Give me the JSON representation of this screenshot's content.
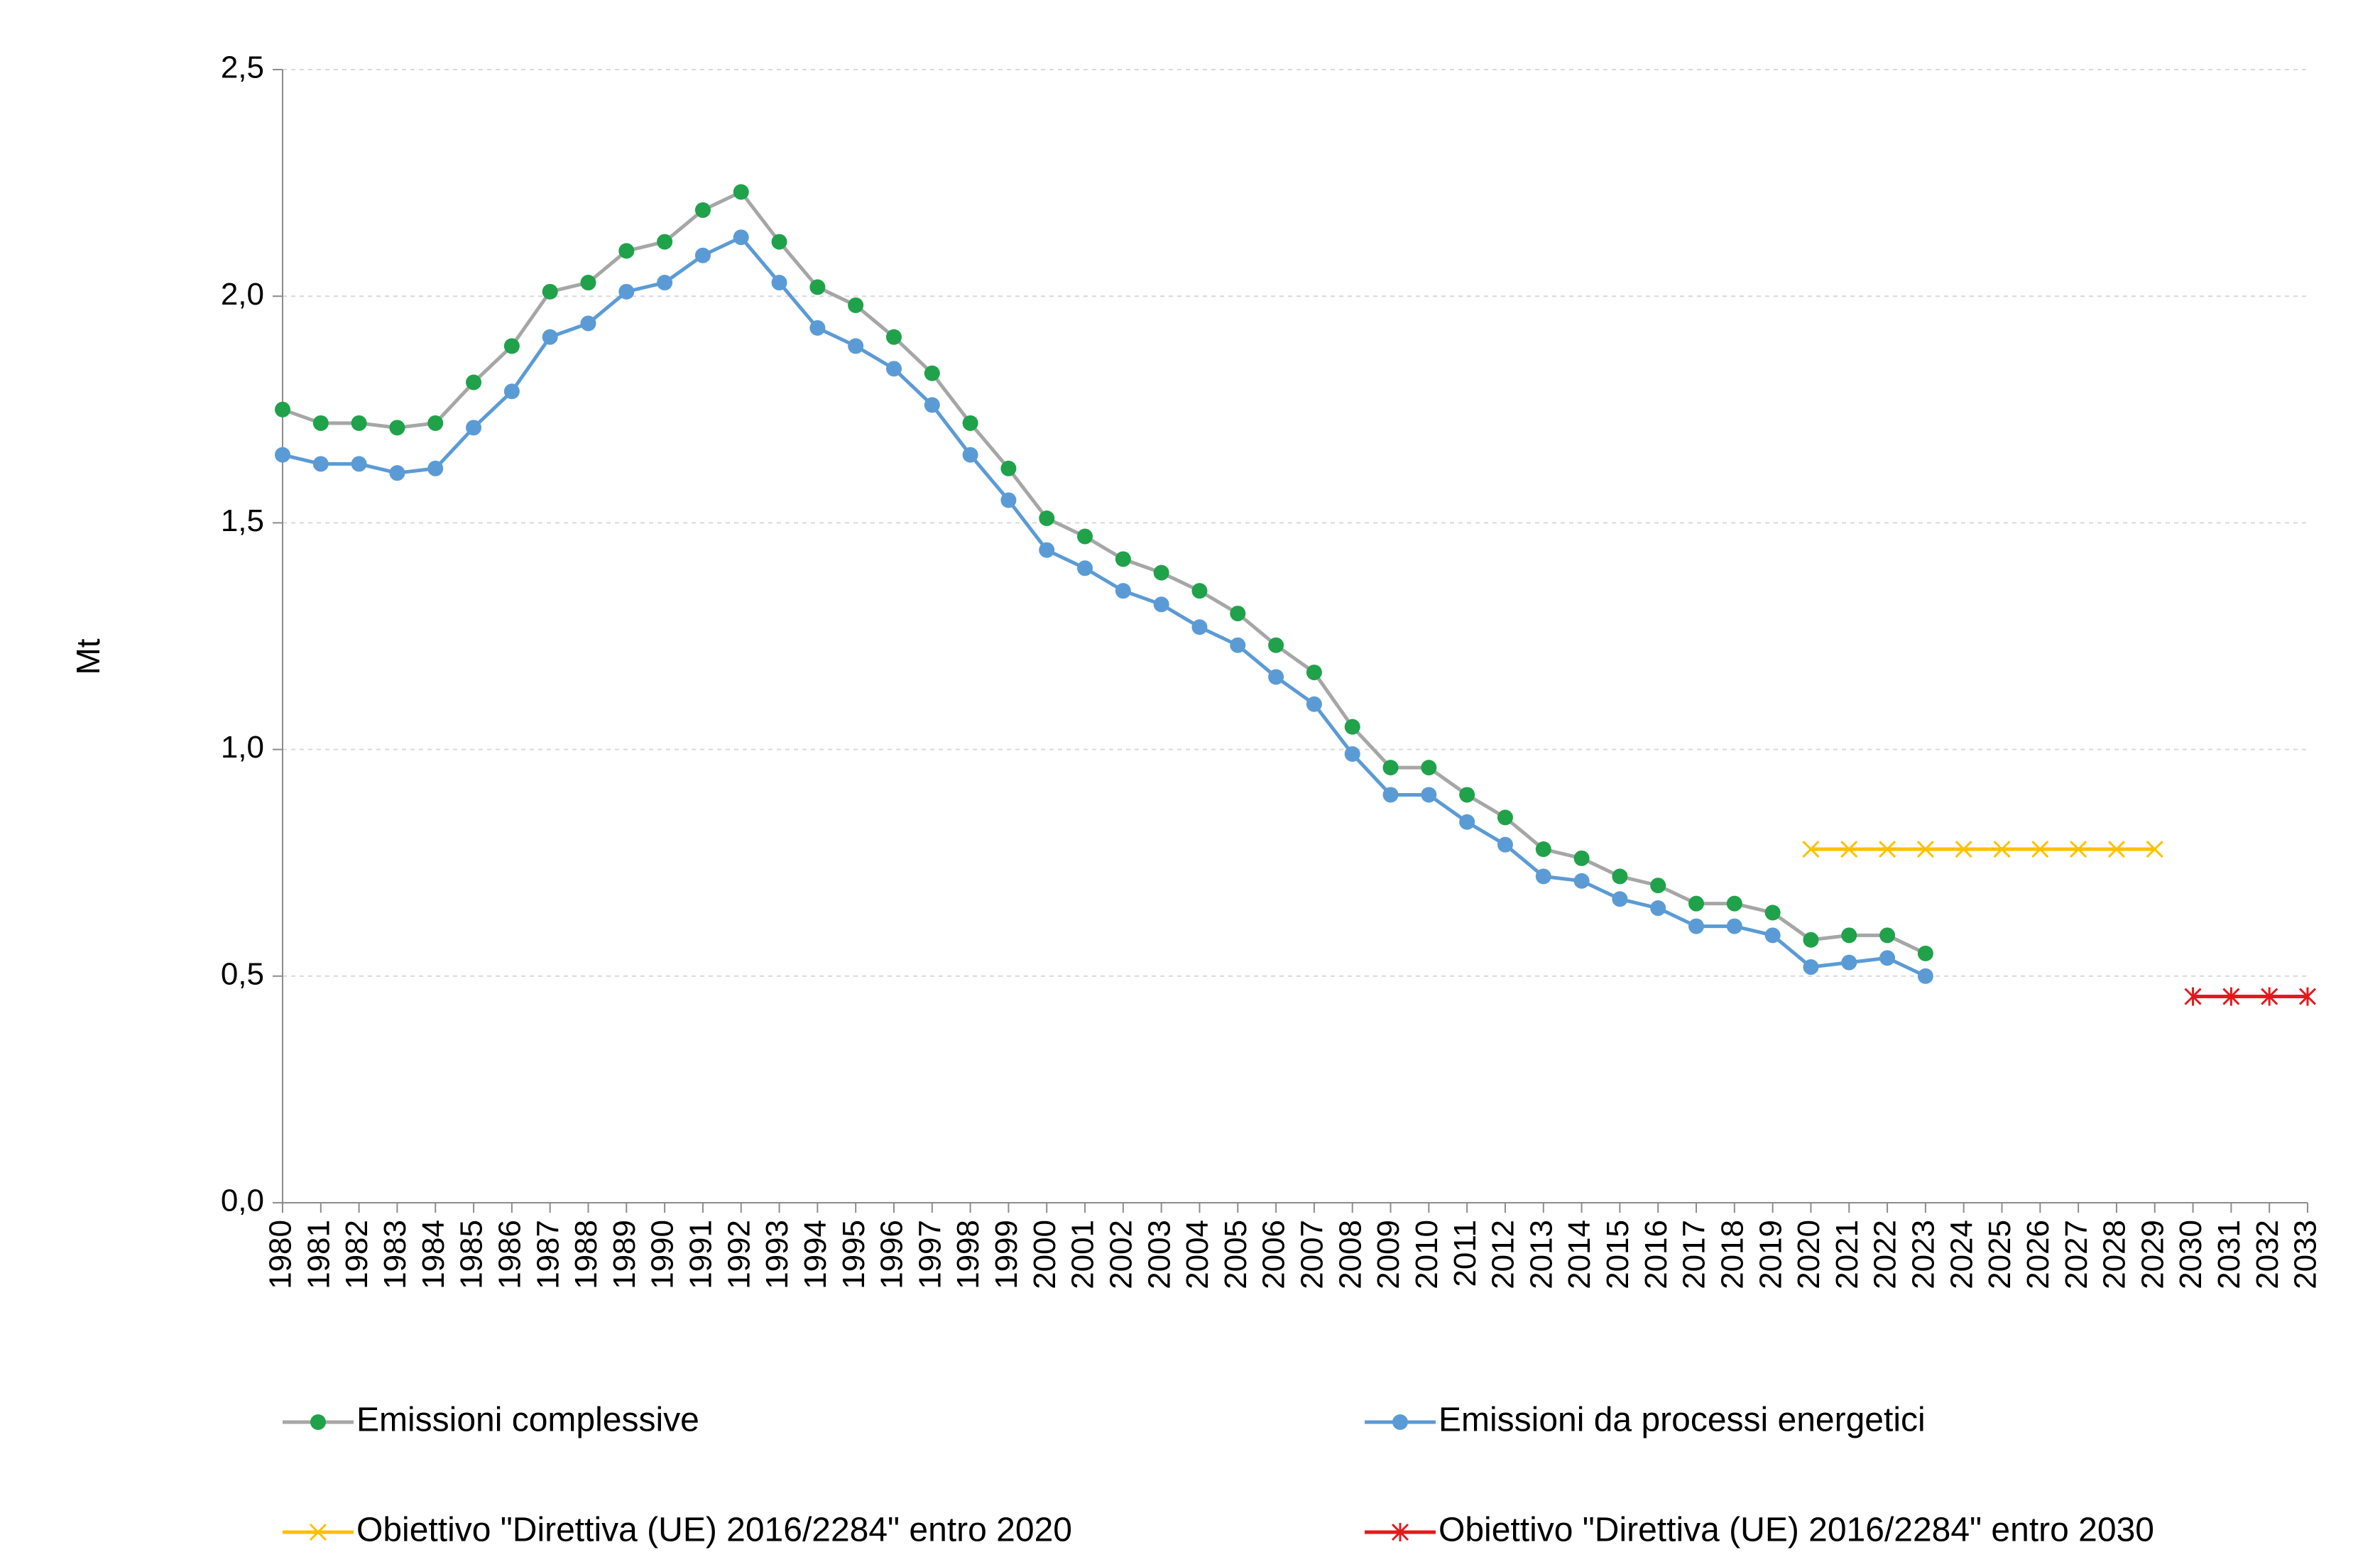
{
  "chart_data": {
    "type": "line",
    "title": "",
    "xlabel": "",
    "ylabel": "Mt",
    "ylim": [
      0,
      2.5
    ],
    "yticks": [
      "0,0",
      "0,5",
      "1,0",
      "1,5",
      "2,0",
      "2,5"
    ],
    "ytick_values": [
      0,
      0.5,
      1.0,
      1.5,
      2.0,
      2.5
    ],
    "grid": true,
    "legend_position": "bottom",
    "categories": [
      "1980",
      "1981",
      "1982",
      "1983",
      "1984",
      "1985",
      "1986",
      "1987",
      "1988",
      "1989",
      "1990",
      "1991",
      "1992",
      "1993",
      "1994",
      "1995",
      "1996",
      "1997",
      "1998",
      "1999",
      "2000",
      "2001",
      "2002",
      "2003",
      "2004",
      "2005",
      "2006",
      "2007",
      "2008",
      "2009",
      "2010",
      "2011",
      "2012",
      "2013",
      "2014",
      "2015",
      "2016",
      "2017",
      "2018",
      "2019",
      "2020",
      "2021",
      "2022",
      "2023",
      "2024",
      "2025",
      "2026",
      "2027",
      "2028",
      "2029",
      "2030",
      "2031",
      "2032",
      "2033"
    ],
    "series": [
      {
        "name": "Emissioni complessive",
        "line_color": "#a6a6a6",
        "marker_color": "#1fa24a",
        "marker": "circle",
        "values": [
          1.75,
          1.72,
          1.72,
          1.71,
          1.72,
          1.81,
          1.89,
          2.01,
          2.03,
          2.1,
          2.12,
          2.19,
          2.23,
          2.12,
          2.02,
          1.98,
          1.91,
          1.83,
          1.72,
          1.62,
          1.51,
          1.47,
          1.42,
          1.39,
          1.35,
          1.3,
          1.23,
          1.17,
          1.05,
          0.96,
          0.96,
          0.9,
          0.85,
          0.78,
          0.76,
          0.72,
          0.7,
          0.66,
          0.66,
          0.64,
          0.58,
          0.59,
          0.59,
          0.55,
          null,
          null,
          null,
          null,
          null,
          null,
          null,
          null,
          null,
          null
        ]
      },
      {
        "name": "Emissioni da processi energetici",
        "line_color": "#5b9bd5",
        "marker_color": "#5b9bd5",
        "marker": "circle",
        "values": [
          1.65,
          1.63,
          1.63,
          1.61,
          1.62,
          1.71,
          1.79,
          1.91,
          1.94,
          2.01,
          2.03,
          2.09,
          2.13,
          2.03,
          1.93,
          1.89,
          1.84,
          1.76,
          1.65,
          1.55,
          1.44,
          1.4,
          1.35,
          1.32,
          1.27,
          1.23,
          1.16,
          1.1,
          0.99,
          0.9,
          0.9,
          0.84,
          0.79,
          0.72,
          0.71,
          0.67,
          0.65,
          0.61,
          0.61,
          0.59,
          0.52,
          0.53,
          0.54,
          0.5,
          null,
          null,
          null,
          null,
          null,
          null,
          null,
          null,
          null,
          null
        ]
      },
      {
        "name": "Obiettivo \"Direttiva (UE) 2016/2284\" entro 2020",
        "line_color": "#ffc000",
        "marker_color": "#ffc000",
        "marker": "x",
        "values": [
          null,
          null,
          null,
          null,
          null,
          null,
          null,
          null,
          null,
          null,
          null,
          null,
          null,
          null,
          null,
          null,
          null,
          null,
          null,
          null,
          null,
          null,
          null,
          null,
          null,
          null,
          null,
          null,
          null,
          null,
          null,
          null,
          null,
          null,
          null,
          null,
          null,
          null,
          null,
          null,
          0.78,
          0.78,
          0.78,
          0.78,
          0.78,
          0.78,
          0.78,
          0.78,
          0.78,
          0.78,
          null,
          null,
          null,
          null
        ]
      },
      {
        "name": "Obiettivo \"Direttiva (UE) 2016/2284\" entro 2030",
        "line_color": "#e31a1c",
        "marker_color": "#e31a1c",
        "marker": "star",
        "values": [
          null,
          null,
          null,
          null,
          null,
          null,
          null,
          null,
          null,
          null,
          null,
          null,
          null,
          null,
          null,
          null,
          null,
          null,
          null,
          null,
          null,
          null,
          null,
          null,
          null,
          null,
          null,
          null,
          null,
          null,
          null,
          null,
          null,
          null,
          null,
          null,
          null,
          null,
          null,
          null,
          null,
          null,
          null,
          null,
          null,
          null,
          null,
          null,
          null,
          null,
          0.455,
          0.455,
          0.455,
          0.455
        ]
      }
    ]
  }
}
